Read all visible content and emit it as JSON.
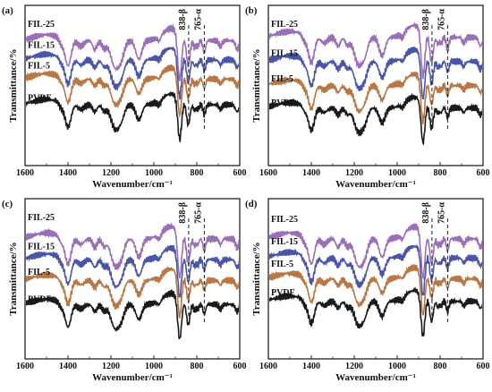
{
  "colors": {
    "FIL-25": "#9b6fb5",
    "FIL-15": "#4a55a8",
    "FIL-5": "#b87745",
    "PVDF": "#1a1a1a"
  },
  "chart_data": [
    {
      "type": "line",
      "panel": "(a)",
      "xlabel": "Wavenumber/cm⁻¹",
      "ylabel": "Transmittance/%",
      "xlim": [
        1600,
        600
      ],
      "x_reversed": true,
      "xticks": [
        "1600",
        "1400",
        "1200",
        "1000",
        "800",
        "600"
      ],
      "series_names": [
        "FIL-25",
        "FIL-15",
        "FIL-5",
        "PVDF"
      ],
      "annotations": [
        {
          "label": "838-β",
          "x": 838
        },
        {
          "label": "765-α",
          "x": 765
        }
      ]
    },
    {
      "type": "line",
      "panel": "(b)",
      "xlabel": "Wavenumber/cm⁻¹",
      "ylabel": "Transmittance/%",
      "xlim": [
        1600,
        600
      ],
      "x_reversed": true,
      "xticks": [
        "1600",
        "1400",
        "1200",
        "1000",
        "800",
        "600"
      ],
      "series_names": [
        "FIL-25",
        "FIL-15",
        "FIL-5",
        "PVDF"
      ],
      "annotations": [
        {
          "label": "838-β",
          "x": 838
        },
        {
          "label": "765-α",
          "x": 765
        }
      ]
    },
    {
      "type": "line",
      "panel": "(c)",
      "xlabel": "Wavenumber/cm⁻¹",
      "ylabel": "Transmittance/%",
      "xlim": [
        1600,
        600
      ],
      "x_reversed": true,
      "xticks": [
        "1600",
        "1400",
        "1200",
        "1000",
        "800",
        "600"
      ],
      "series_names": [
        "FIL-25",
        "FIL-15",
        "FIL-5",
        "PVDF"
      ],
      "annotations": [
        {
          "label": "838-β",
          "x": 838
        },
        {
          "label": "765-α",
          "x": 765
        }
      ]
    },
    {
      "type": "line",
      "panel": "(d)",
      "xlabel": "Wavenumber/cm⁻¹",
      "ylabel": "Transmittance/%",
      "xlim": [
        1600,
        600
      ],
      "x_reversed": true,
      "xticks": [
        "1600",
        "1400",
        "1200",
        "1000",
        "800",
        "600"
      ],
      "series_names": [
        "FIL-25",
        "FIL-15",
        "FIL-5",
        "PVDF"
      ],
      "annotations": [
        {
          "label": "838-β",
          "x": 838
        },
        {
          "label": "765-α",
          "x": 765
        }
      ]
    }
  ]
}
